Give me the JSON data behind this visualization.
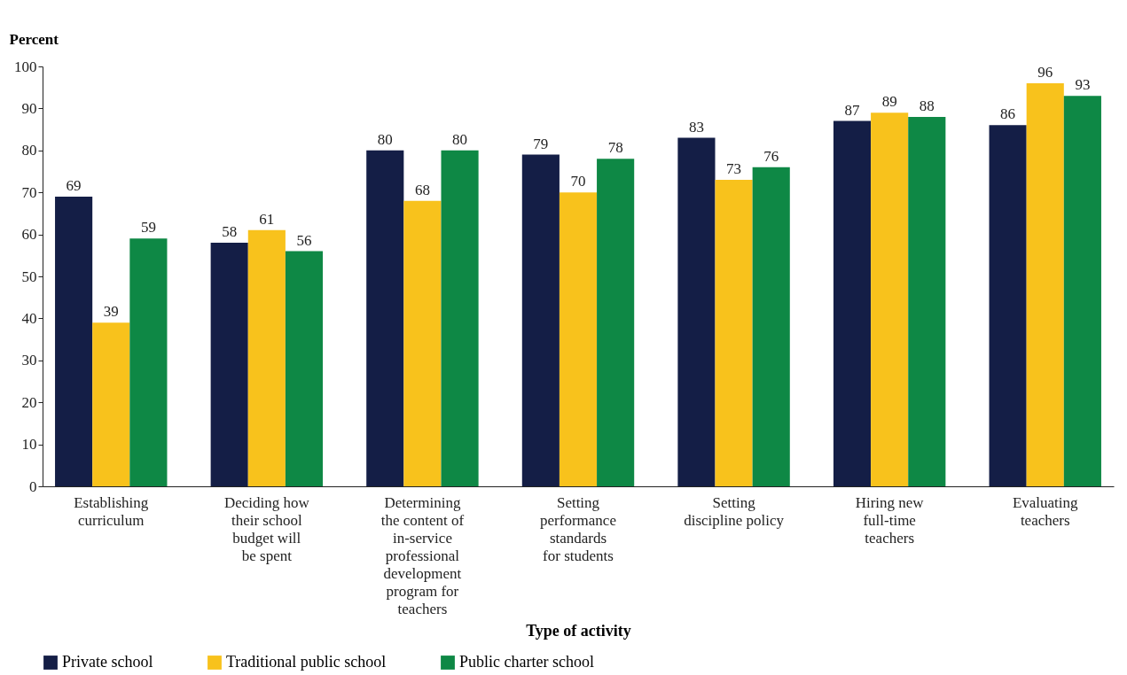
{
  "chart_data": {
    "type": "bar",
    "ylabel": "Percent",
    "xlabel": "Type of activity",
    "categories": [
      "Establishing\ncurriculum",
      "Deciding how\ntheir school\nbudget will\nbe spent",
      "Determining\nthe content of\nin-service\nprofessional\ndevelopment\nprogram for\nteachers",
      "Setting\nperformance\nstandards\nfor students",
      "Setting\ndiscipline policy",
      "Hiring new\nfull-time\nteachers",
      "Evaluating\nteachers"
    ],
    "series": [
      {
        "name": "Private school",
        "color": "#141e46",
        "values": [
          69,
          58,
          80,
          79,
          83,
          87,
          86
        ]
      },
      {
        "name": "Traditional public school",
        "color": "#f8c21c",
        "values": [
          39,
          61,
          68,
          70,
          73,
          89,
          96
        ]
      },
      {
        "name": "Public charter school",
        "color": "#0e8845",
        "values": [
          59,
          56,
          80,
          78,
          76,
          88,
          93
        ]
      }
    ],
    "ylim": [
      0,
      100
    ],
    "yticks": [
      0,
      10,
      20,
      30,
      40,
      50,
      60,
      70,
      80,
      90,
      100
    ],
    "data_labels": true,
    "legend": "bottom",
    "grid": false
  }
}
